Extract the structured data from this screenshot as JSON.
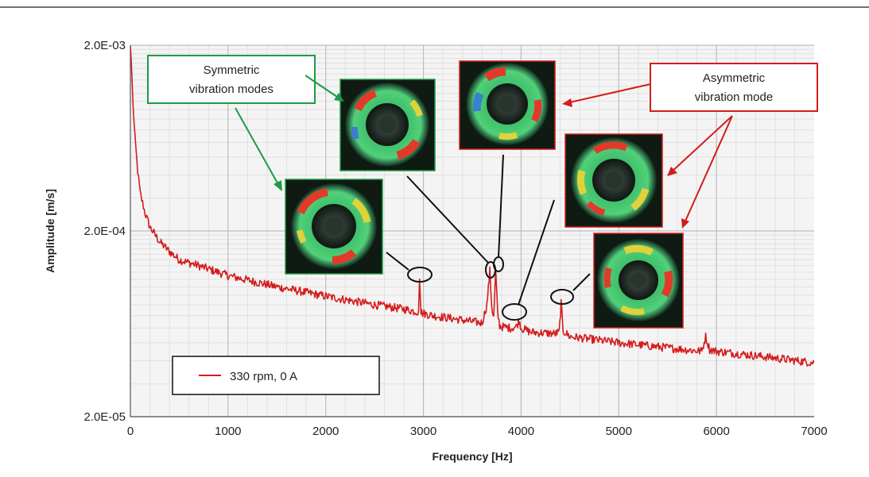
{
  "chart_data": {
    "type": "line",
    "xlabel": "Frequency [Hz]",
    "ylabel": "Amplitude [m/s]",
    "xlim": [
      0,
      7000
    ],
    "ylim": [
      2e-05,
      0.002
    ],
    "yscale": "log",
    "x_ticks": [
      0,
      1000,
      2000,
      3000,
      4000,
      5000,
      6000,
      7000
    ],
    "x_tick_labels": [
      "0",
      "1000",
      "2000",
      "3000",
      "4000",
      "5000",
      "6000",
      "7000"
    ],
    "y_ticks": [
      2e-05,
      0.0002,
      0.002
    ],
    "y_tick_labels": [
      "2.0E-05",
      "2.0E-04",
      "2.0E-03"
    ],
    "grid": true,
    "legend_position": "bottom-left",
    "series": [
      {
        "name": "330 rpm, 0 A",
        "color": "#d41c1c",
        "x": [
          0,
          10,
          25,
          50,
          75,
          100,
          150,
          200,
          300,
          400,
          500,
          700,
          1000,
          1500,
          2000,
          2500,
          2800,
          2900,
          2950,
          2960,
          2975,
          3000,
          3100,
          3500,
          3600,
          3650,
          3680,
          3700,
          3720,
          3740,
          3760,
          3780,
          3800,
          3900,
          3950,
          3980,
          4000,
          4100,
          4350,
          4390,
          4410,
          4430,
          4500,
          5000,
          5500,
          5850,
          5890,
          5930,
          6000,
          6500,
          7000
        ],
        "y": [
          0.002,
          0.0016,
          0.001,
          0.0006,
          0.00042,
          0.00032,
          0.00025,
          0.00021,
          0.000175,
          0.000155,
          0.00014,
          0.00013,
          0.000115,
          0.0001,
          8.9e-05,
          8e-05,
          7.6e-05,
          7.4e-05,
          7.35e-05,
          0.00011,
          7.3e-05,
          7.2e-05,
          7e-05,
          6.5e-05,
          6.4e-05,
          8e-05,
          0.000122,
          7.8e-05,
          6.8e-05,
          0.000122,
          7.2e-05,
          6.2e-05,
          6.1e-05,
          6e-05,
          6.1e-05,
          6.6e-05,
          6e-05,
          5.7e-05,
          5.6e-05,
          5.7e-05,
          8.2e-05,
          5.8e-05,
          5.4e-05,
          5e-05,
          4.7e-05,
          4.5e-05,
          5.4e-05,
          4.6e-05,
          4.5e-05,
          4.2e-05,
          3.9e-05
        ]
      }
    ],
    "annotations": [
      {
        "text": "Symmetric vibration modes",
        "line1": "Symmetric",
        "line2": "vibration modes",
        "color": "#1f9a45"
      },
      {
        "text": "Asymmetric vibration mode",
        "line1": "Asymmetric",
        "line2": "vibration mode",
        "color": "#d41c1c"
      }
    ]
  },
  "colors": {
    "plot_background": "#f4f4f4",
    "frame_line": "#555555",
    "grid_major": "#bdbdbd",
    "grid_minor": "#e0e0e0",
    "symmetric": "#1f9a45",
    "asymmetric": "#d41c1c",
    "marker": "#111111",
    "series": "#d41c1c"
  }
}
